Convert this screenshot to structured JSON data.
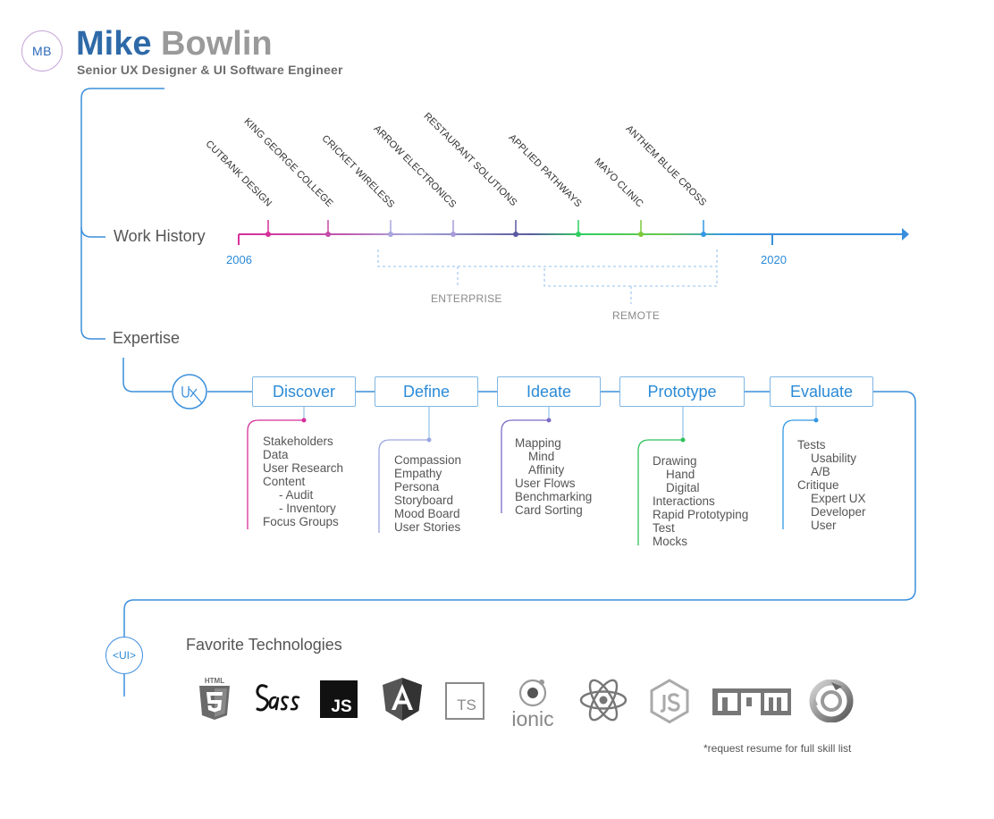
{
  "header": {
    "logo_initials": "MB",
    "first_name": "Mike",
    "last_name": "Bowlin",
    "subtitle": "Senior UX Designer & UI Software Engineer"
  },
  "work_history": {
    "label": "Work History",
    "start_year": "2006",
    "end_year": "2020",
    "companies": [
      {
        "name": "CUTBANK DESIGN",
        "color": "#d62f9a"
      },
      {
        "name": "KING GEORGE COLLEGE",
        "color": "#c44aa8"
      },
      {
        "name": "CRICKET WIRELESS",
        "color": "#a8a6dc"
      },
      {
        "name": "ARROW ELECTRONICS",
        "color": "#a89ad8"
      },
      {
        "name": "RESTAURANT SOLUTIONS",
        "color": "#5a5aa0"
      },
      {
        "name": "APPLIED PATHWAYS",
        "color": "#2fcf5f"
      },
      {
        "name": "MAYO CLINIC",
        "color": "#7ec93a"
      },
      {
        "name": "ANTHEM BLUE CROSS",
        "color": "#3399e6"
      }
    ],
    "brackets": {
      "enterprise": "ENTERPRISE",
      "remote": "REMOTE"
    }
  },
  "expertise": {
    "label": "Expertise",
    "badge": "UX",
    "stages": [
      {
        "title": "Discover",
        "color": "#d62f9a",
        "items": [
          "Stakeholders",
          "Data",
          "User Research",
          "Content",
          "-  Audit",
          "-  Inventory",
          "Focus Groups"
        ]
      },
      {
        "title": "Define",
        "color": "#9aa8e0",
        "items": [
          "Compassion",
          "Empathy",
          "Persona",
          "Storyboard",
          "Mood Board",
          "User Stories"
        ]
      },
      {
        "title": "Ideate",
        "color": "#7a6cc8",
        "items": [
          "Mapping",
          "Mind",
          "Affinity",
          "User Flows",
          "Benchmarking",
          "Card Sorting"
        ]
      },
      {
        "title": "Prototype",
        "color": "#2ec05c",
        "items": [
          "Drawing",
          "Hand",
          "Digital",
          "Interactions",
          "Rapid Prototyping",
          "Test",
          "Mocks"
        ]
      },
      {
        "title": "Evaluate",
        "color": "#3399e6",
        "items": [
          "Tests",
          "Usability",
          "A/B",
          "Critique",
          "Expert UX",
          "Developer",
          "User"
        ]
      }
    ]
  },
  "technologies": {
    "badge": "<UI>",
    "title": "Favorite Technologies",
    "html5_label": "HTML",
    "js_label": "JS",
    "ts_label": "TS",
    "ionic_label": "ionic",
    "npm_label": "npm",
    "icons": [
      "html5-icon",
      "sass-icon",
      "javascript-icon",
      "angular-icon",
      "typescript-icon",
      "ionic-icon",
      "react-icon",
      "nodejs-icon",
      "npm-icon",
      "cycle-icon"
    ],
    "footnote": "*request resume for full skill list"
  },
  "colors": {
    "accent": "#3a8fdc",
    "name_blue": "#2e6aa8",
    "muted": "#9a9a9a"
  }
}
